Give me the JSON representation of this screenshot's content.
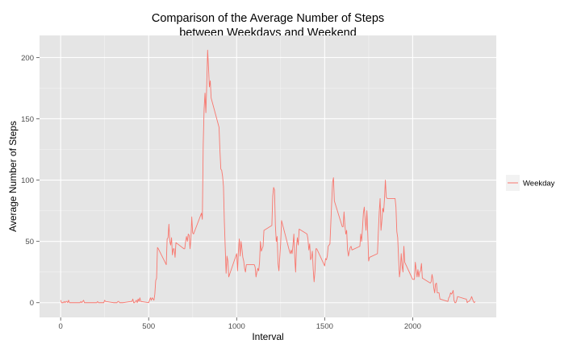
{
  "chart_data": {
    "type": "line",
    "title": [
      "Comparison of the Average Number of Steps",
      "between Weekdays and Weekend"
    ],
    "xlabel": "Interval",
    "ylabel": "Average Number of Steps",
    "xlim": [
      -120,
      2475
    ],
    "ylim": [
      -12,
      218
    ],
    "xticks": [
      0,
      500,
      1000,
      1500,
      2000
    ],
    "yticks": [
      0,
      50,
      100,
      150,
      200
    ],
    "grid": true,
    "legend_position": "right",
    "colors": {
      "panel": "#e5e5e5",
      "grid_major": "#ffffff",
      "grid_minor": "#f2f2f2",
      "series": "#f8766d",
      "text": "#4d4d4d"
    },
    "series": [
      {
        "name": "Weekday",
        "points": [
          [
            0,
            2
          ],
          [
            5,
            0
          ],
          [
            10,
            0
          ],
          [
            15,
            0
          ],
          [
            20,
            1
          ],
          [
            25,
            0
          ],
          [
            30,
            1
          ],
          [
            35,
            1
          ],
          [
            40,
            0
          ],
          [
            45,
            2
          ],
          [
            50,
            0
          ],
          [
            55,
            0
          ],
          [
            100,
            0
          ],
          [
            105,
            0
          ],
          [
            110,
            0
          ],
          [
            115,
            1
          ],
          [
            120,
            0
          ],
          [
            125,
            1
          ],
          [
            130,
            2
          ],
          [
            135,
            0
          ],
          [
            140,
            0
          ],
          [
            145,
            0
          ],
          [
            150,
            0
          ],
          [
            155,
            0
          ],
          [
            200,
            0
          ],
          [
            205,
            0
          ],
          [
            210,
            1
          ],
          [
            215,
            0
          ],
          [
            220,
            0
          ],
          [
            225,
            0
          ],
          [
            230,
            0
          ],
          [
            235,
            0
          ],
          [
            240,
            0
          ],
          [
            245,
            0
          ],
          [
            250,
            2
          ],
          [
            255,
            1
          ],
          [
            300,
            0
          ],
          [
            305,
            0
          ],
          [
            310,
            0
          ],
          [
            315,
            0
          ],
          [
            320,
            0
          ],
          [
            325,
            1
          ],
          [
            330,
            1
          ],
          [
            335,
            0
          ],
          [
            340,
            0
          ],
          [
            345,
            0
          ],
          [
            350,
            0
          ],
          [
            355,
            0
          ],
          [
            400,
            1
          ],
          [
            405,
            1
          ],
          [
            410,
            3
          ],
          [
            415,
            0
          ],
          [
            420,
            0
          ],
          [
            425,
            1
          ],
          [
            430,
            2
          ],
          [
            435,
            0
          ],
          [
            440,
            3
          ],
          [
            445,
            1
          ],
          [
            450,
            4
          ],
          [
            455,
            1
          ],
          [
            500,
            0
          ],
          [
            505,
            2
          ],
          [
            510,
            4
          ],
          [
            515,
            2
          ],
          [
            520,
            4
          ],
          [
            525,
            3
          ],
          [
            530,
            2
          ],
          [
            535,
            7
          ],
          [
            540,
            18
          ],
          [
            545,
            20
          ],
          [
            550,
            45
          ],
          [
            555,
            44
          ],
          [
            600,
            31
          ],
          [
            605,
            52
          ],
          [
            610,
            53
          ],
          [
            615,
            64
          ],
          [
            620,
            50
          ],
          [
            625,
            47
          ],
          [
            630,
            53
          ],
          [
            635,
            39
          ],
          [
            640,
            44
          ],
          [
            645,
            44
          ],
          [
            650,
            37
          ],
          [
            655,
            49
          ],
          [
            700,
            44
          ],
          [
            705,
            44
          ],
          [
            710,
            50
          ],
          [
            715,
            54
          ],
          [
            720,
            50
          ],
          [
            725,
            56
          ],
          [
            730,
            55
          ],
          [
            735,
            44
          ],
          [
            740,
            52
          ],
          [
            745,
            70
          ],
          [
            750,
            57
          ],
          [
            755,
            56
          ],
          [
            800,
            73
          ],
          [
            805,
            68
          ],
          [
            810,
            129
          ],
          [
            815,
            158
          ],
          [
            820,
            171
          ],
          [
            825,
            155
          ],
          [
            830,
            178
          ],
          [
            835,
            206
          ],
          [
            840,
            192
          ],
          [
            845,
            176
          ],
          [
            850,
            181
          ],
          [
            855,
            167
          ],
          [
            900,
            143
          ],
          [
            905,
            124
          ],
          [
            910,
            109
          ],
          [
            915,
            108
          ],
          [
            920,
            103
          ],
          [
            925,
            95
          ],
          [
            930,
            66
          ],
          [
            935,
            45
          ],
          [
            940,
            24
          ],
          [
            945,
            38
          ],
          [
            950,
            34
          ],
          [
            955,
            21
          ],
          [
            1000,
            40
          ],
          [
            1005,
            26
          ],
          [
            1010,
            42
          ],
          [
            1015,
            52
          ],
          [
            1020,
            38
          ],
          [
            1025,
            50
          ],
          [
            1030,
            44
          ],
          [
            1035,
            37
          ],
          [
            1040,
            34
          ],
          [
            1045,
            28
          ],
          [
            1050,
            25
          ],
          [
            1055,
            31
          ],
          [
            1100,
            31
          ],
          [
            1105,
            29
          ],
          [
            1110,
            21
          ],
          [
            1115,
            25
          ],
          [
            1120,
            28
          ],
          [
            1125,
            26
          ],
          [
            1130,
            33
          ],
          [
            1135,
            50
          ],
          [
            1140,
            42
          ],
          [
            1145,
            44
          ],
          [
            1150,
            46
          ],
          [
            1155,
            59
          ],
          [
            1200,
            63
          ],
          [
            1205,
            87
          ],
          [
            1210,
            94
          ],
          [
            1215,
            92
          ],
          [
            1220,
            63
          ],
          [
            1225,
            50
          ],
          [
            1230,
            54
          ],
          [
            1235,
            32
          ],
          [
            1240,
            26
          ],
          [
            1245,
            37
          ],
          [
            1250,
            48
          ],
          [
            1255,
            67
          ],
          [
            1300,
            42
          ],
          [
            1305,
            40
          ],
          [
            1310,
            43
          ],
          [
            1315,
            40
          ],
          [
            1320,
            47
          ],
          [
            1325,
            56
          ],
          [
            1330,
            37
          ],
          [
            1335,
            25
          ],
          [
            1340,
            46
          ],
          [
            1345,
            53
          ],
          [
            1350,
            47
          ],
          [
            1355,
            60
          ],
          [
            1400,
            56
          ],
          [
            1405,
            52
          ],
          [
            1410,
            43
          ],
          [
            1415,
            48
          ],
          [
            1420,
            35
          ],
          [
            1425,
            37
          ],
          [
            1430,
            42
          ],
          [
            1435,
            27
          ],
          [
            1440,
            17
          ],
          [
            1445,
            26
          ],
          [
            1450,
            44
          ],
          [
            1455,
            44
          ],
          [
            1500,
            30
          ],
          [
            1505,
            36
          ],
          [
            1510,
            35
          ],
          [
            1515,
            38
          ],
          [
            1520,
            46
          ],
          [
            1525,
            47
          ],
          [
            1530,
            48
          ],
          [
            1535,
            65
          ],
          [
            1540,
            82
          ],
          [
            1545,
            98
          ],
          [
            1550,
            102
          ],
          [
            1555,
            83
          ],
          [
            1600,
            62
          ],
          [
            1605,
            62
          ],
          [
            1610,
            74
          ],
          [
            1615,
            63
          ],
          [
            1620,
            56
          ],
          [
            1625,
            59
          ],
          [
            1630,
            43
          ],
          [
            1635,
            38
          ],
          [
            1640,
            42
          ],
          [
            1645,
            45
          ],
          [
            1650,
            46
          ],
          [
            1655,
            43
          ],
          [
            1700,
            46
          ],
          [
            1705,
            56
          ],
          [
            1710,
            50
          ],
          [
            1715,
            61
          ],
          [
            1720,
            73
          ],
          [
            1725,
            78
          ],
          [
            1730,
            68
          ],
          [
            1735,
            59
          ],
          [
            1740,
            75
          ],
          [
            1745,
            56
          ],
          [
            1750,
            34
          ],
          [
            1755,
            37
          ],
          [
            1800,
            40
          ],
          [
            1805,
            58
          ],
          [
            1810,
            74
          ],
          [
            1815,
            85
          ],
          [
            1820,
            59
          ],
          [
            1825,
            67
          ],
          [
            1830,
            77
          ],
          [
            1835,
            74
          ],
          [
            1840,
            85
          ],
          [
            1845,
            100
          ],
          [
            1850,
            86
          ],
          [
            1855,
            85
          ],
          [
            1900,
            85
          ],
          [
            1905,
            78
          ],
          [
            1910,
            58
          ],
          [
            1915,
            53
          ],
          [
            1920,
            36
          ],
          [
            1925,
            21
          ],
          [
            1930,
            27
          ],
          [
            1935,
            40
          ],
          [
            1940,
            30
          ],
          [
            1945,
            25
          ],
          [
            1950,
            46
          ],
          [
            1955,
            33
          ],
          [
            2000,
            19
          ],
          [
            2005,
            19
          ],
          [
            2010,
            19
          ],
          [
            2015,
            33
          ],
          [
            2020,
            27
          ],
          [
            2025,
            21
          ],
          [
            2030,
            27
          ],
          [
            2035,
            21
          ],
          [
            2040,
            25
          ],
          [
            2045,
            26
          ],
          [
            2050,
            32
          ],
          [
            2055,
            20
          ],
          [
            2100,
            16
          ],
          [
            2105,
            17
          ],
          [
            2110,
            23
          ],
          [
            2115,
            19
          ],
          [
            2120,
            12
          ],
          [
            2125,
            8
          ],
          [
            2130,
            15
          ],
          [
            2135,
            16
          ],
          [
            2140,
            8
          ],
          [
            2145,
            8
          ],
          [
            2150,
            8
          ],
          [
            2155,
            3
          ],
          [
            2200,
            1
          ],
          [
            2205,
            4
          ],
          [
            2210,
            5
          ],
          [
            2215,
            8
          ],
          [
            2220,
            7
          ],
          [
            2225,
            8
          ],
          [
            2230,
            10
          ],
          [
            2235,
            2
          ],
          [
            2240,
            0
          ],
          [
            2245,
            0
          ],
          [
            2250,
            2
          ],
          [
            2255,
            5
          ],
          [
            2300,
            3
          ],
          [
            2305,
            3
          ],
          [
            2310,
            0
          ],
          [
            2315,
            1
          ],
          [
            2320,
            1
          ],
          [
            2325,
            2
          ],
          [
            2330,
            3
          ],
          [
            2335,
            5
          ],
          [
            2340,
            3
          ],
          [
            2345,
            1
          ],
          [
            2350,
            0
          ],
          [
            2355,
            1
          ]
        ]
      }
    ]
  }
}
